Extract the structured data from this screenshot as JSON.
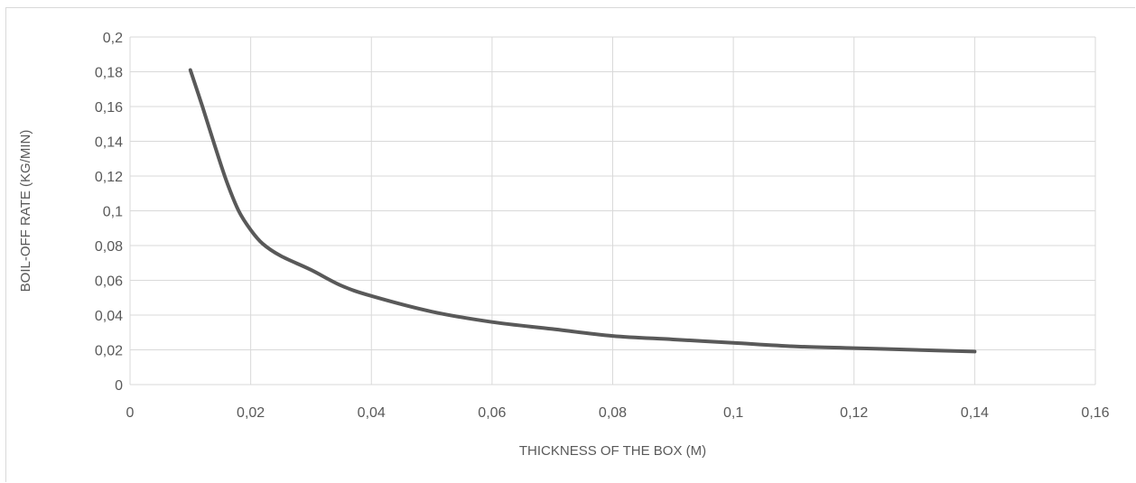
{
  "chart_data": {
    "type": "line",
    "title": "",
    "xlabel": "THICKNESS OF THE BOX (M)",
    "ylabel": "BOIL-OFF RATE (KG/MIN)",
    "xlim": [
      0,
      0.16
    ],
    "ylim": [
      0,
      0.2
    ],
    "x_ticks": [
      "0",
      "0,02",
      "0,04",
      "0,06",
      "0,08",
      "0,1",
      "0,12",
      "0,14",
      "0,16"
    ],
    "y_ticks": [
      "0",
      "0,02",
      "0,04",
      "0,06",
      "0,08",
      "0,1",
      "0,12",
      "0,14",
      "0,16",
      "0,18",
      "0,2"
    ],
    "grid": "on",
    "legend": "none",
    "series": [
      {
        "color": "#595959",
        "x": [
          0.01,
          0.012,
          0.014,
          0.016,
          0.018,
          0.02,
          0.022,
          0.025,
          0.03,
          0.035,
          0.04,
          0.05,
          0.06,
          0.07,
          0.08,
          0.09,
          0.1,
          0.11,
          0.12,
          0.13,
          0.14
        ],
        "y": [
          0.181,
          0.16,
          0.138,
          0.117,
          0.1,
          0.089,
          0.081,
          0.074,
          0.066,
          0.057,
          0.051,
          0.042,
          0.036,
          0.032,
          0.028,
          0.026,
          0.024,
          0.022,
          0.021,
          0.02,
          0.019
        ]
      }
    ]
  }
}
